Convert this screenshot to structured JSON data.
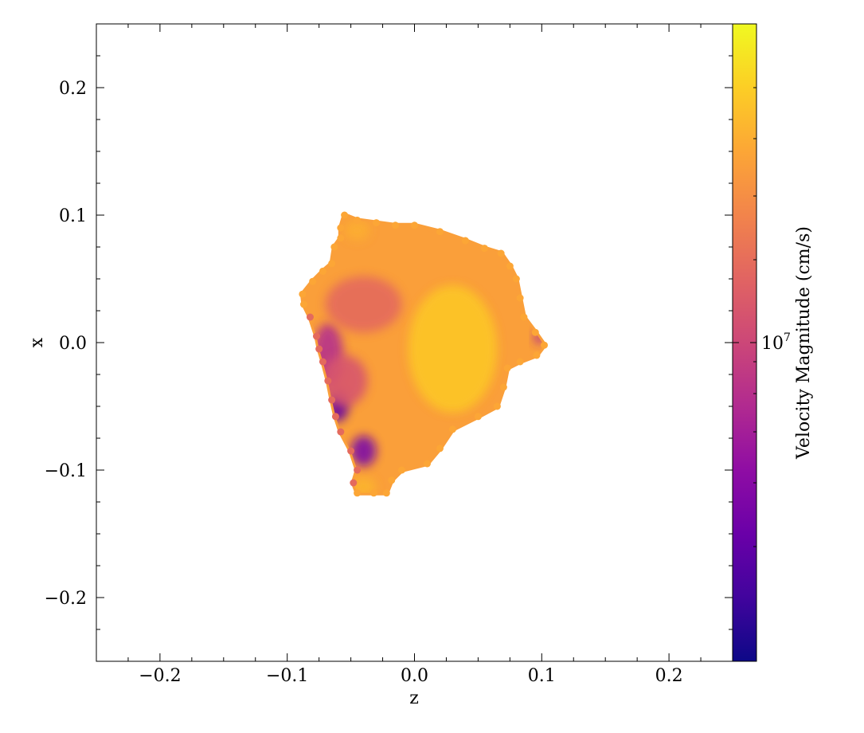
{
  "chart_data": {
    "type": "scatter",
    "xlabel": "z",
    "ylabel": "x",
    "xlim": [
      -0.25,
      0.25
    ],
    "ylim": [
      -0.25,
      0.25
    ],
    "xticks": [
      {
        "value": -0.2,
        "label": "−0.2"
      },
      {
        "value": -0.1,
        "label": "−0.1"
      },
      {
        "value": 0.0,
        "label": "0.0"
      },
      {
        "value": 0.1,
        "label": "0.1"
      },
      {
        "value": 0.2,
        "label": "0.2"
      }
    ],
    "yticks": [
      {
        "value": 0.2,
        "label": "0.2"
      },
      {
        "value": 0.1,
        "label": "0.1"
      },
      {
        "value": 0.0,
        "label": "0.0"
      },
      {
        "value": -0.1,
        "label": "−0.1"
      },
      {
        "value": -0.2,
        "label": "−0.2"
      }
    ],
    "colorbar": {
      "label": "Velocity Magnitude  (cm/s)",
      "colormap": "plasma",
      "scale": "log",
      "tick_base": "10",
      "tick_exponent": "7",
      "tick_fraction": 0.5
    },
    "blob_outline": [
      [
        -0.055,
        0.1
      ],
      [
        -0.045,
        0.096
      ],
      [
        -0.03,
        0.094
      ],
      [
        -0.015,
        0.092
      ],
      [
        0.0,
        0.092
      ],
      [
        0.02,
        0.087
      ],
      [
        0.04,
        0.08
      ],
      [
        0.055,
        0.074
      ],
      [
        0.068,
        0.07
      ],
      [
        0.075,
        0.06
      ],
      [
        0.08,
        0.05
      ],
      [
        0.083,
        0.035
      ],
      [
        0.086,
        0.02
      ],
      [
        0.095,
        0.008
      ],
      [
        0.102,
        -0.002
      ],
      [
        0.096,
        -0.01
      ],
      [
        0.083,
        -0.015
      ],
      [
        0.073,
        -0.02
      ],
      [
        0.07,
        -0.035
      ],
      [
        0.065,
        -0.05
      ],
      [
        0.05,
        -0.058
      ],
      [
        0.03,
        -0.068
      ],
      [
        0.02,
        -0.083
      ],
      [
        0.01,
        -0.095
      ],
      [
        -0.01,
        -0.1
      ],
      [
        -0.018,
        -0.108
      ],
      [
        -0.022,
        -0.118
      ],
      [
        -0.032,
        -0.118
      ],
      [
        -0.045,
        -0.118
      ],
      [
        -0.048,
        -0.11
      ],
      [
        -0.045,
        -0.1
      ],
      [
        -0.05,
        -0.085
      ],
      [
        -0.058,
        -0.07
      ],
      [
        -0.062,
        -0.058
      ],
      [
        -0.065,
        -0.045
      ],
      [
        -0.068,
        -0.03
      ],
      [
        -0.072,
        -0.015
      ],
      [
        -0.075,
        -0.005
      ],
      [
        -0.077,
        0.005
      ],
      [
        -0.082,
        0.02
      ],
      [
        -0.087,
        0.03
      ],
      [
        -0.088,
        0.038
      ],
      [
        -0.08,
        0.048
      ],
      [
        -0.072,
        0.056
      ],
      [
        -0.065,
        0.062
      ],
      [
        -0.063,
        0.075
      ],
      [
        -0.058,
        0.082
      ],
      [
        -0.058,
        0.09
      ]
    ],
    "slow_regions": [
      {
        "z": -0.068,
        "x": -0.01,
        "rz": 0.012,
        "rx": 0.025,
        "v": 0.42
      },
      {
        "z": -0.06,
        "x": -0.05,
        "rz": 0.008,
        "rx": 0.012,
        "v": 0.18
      },
      {
        "z": -0.04,
        "x": -0.085,
        "rz": 0.01,
        "rx": 0.012,
        "v": 0.25
      },
      {
        "z": -0.055,
        "x": -0.03,
        "rz": 0.018,
        "rx": 0.02,
        "v": 0.55
      },
      {
        "z": -0.04,
        "x": 0.03,
        "rz": 0.03,
        "rx": 0.022,
        "v": 0.62
      },
      {
        "z": 0.098,
        "x": 0.004,
        "rz": 0.004,
        "rx": 0.005,
        "v": 0.4
      }
    ],
    "fast_regions": [
      {
        "z": 0.03,
        "x": -0.005,
        "rz": 0.035,
        "rx": 0.05,
        "v": 0.88
      },
      {
        "z": -0.04,
        "x": -0.113,
        "rz": 0.01,
        "rx": 0.007,
        "v": 0.84
      },
      {
        "z": -0.045,
        "x": 0.088,
        "rz": 0.01,
        "rx": 0.008,
        "v": 0.82
      }
    ]
  }
}
